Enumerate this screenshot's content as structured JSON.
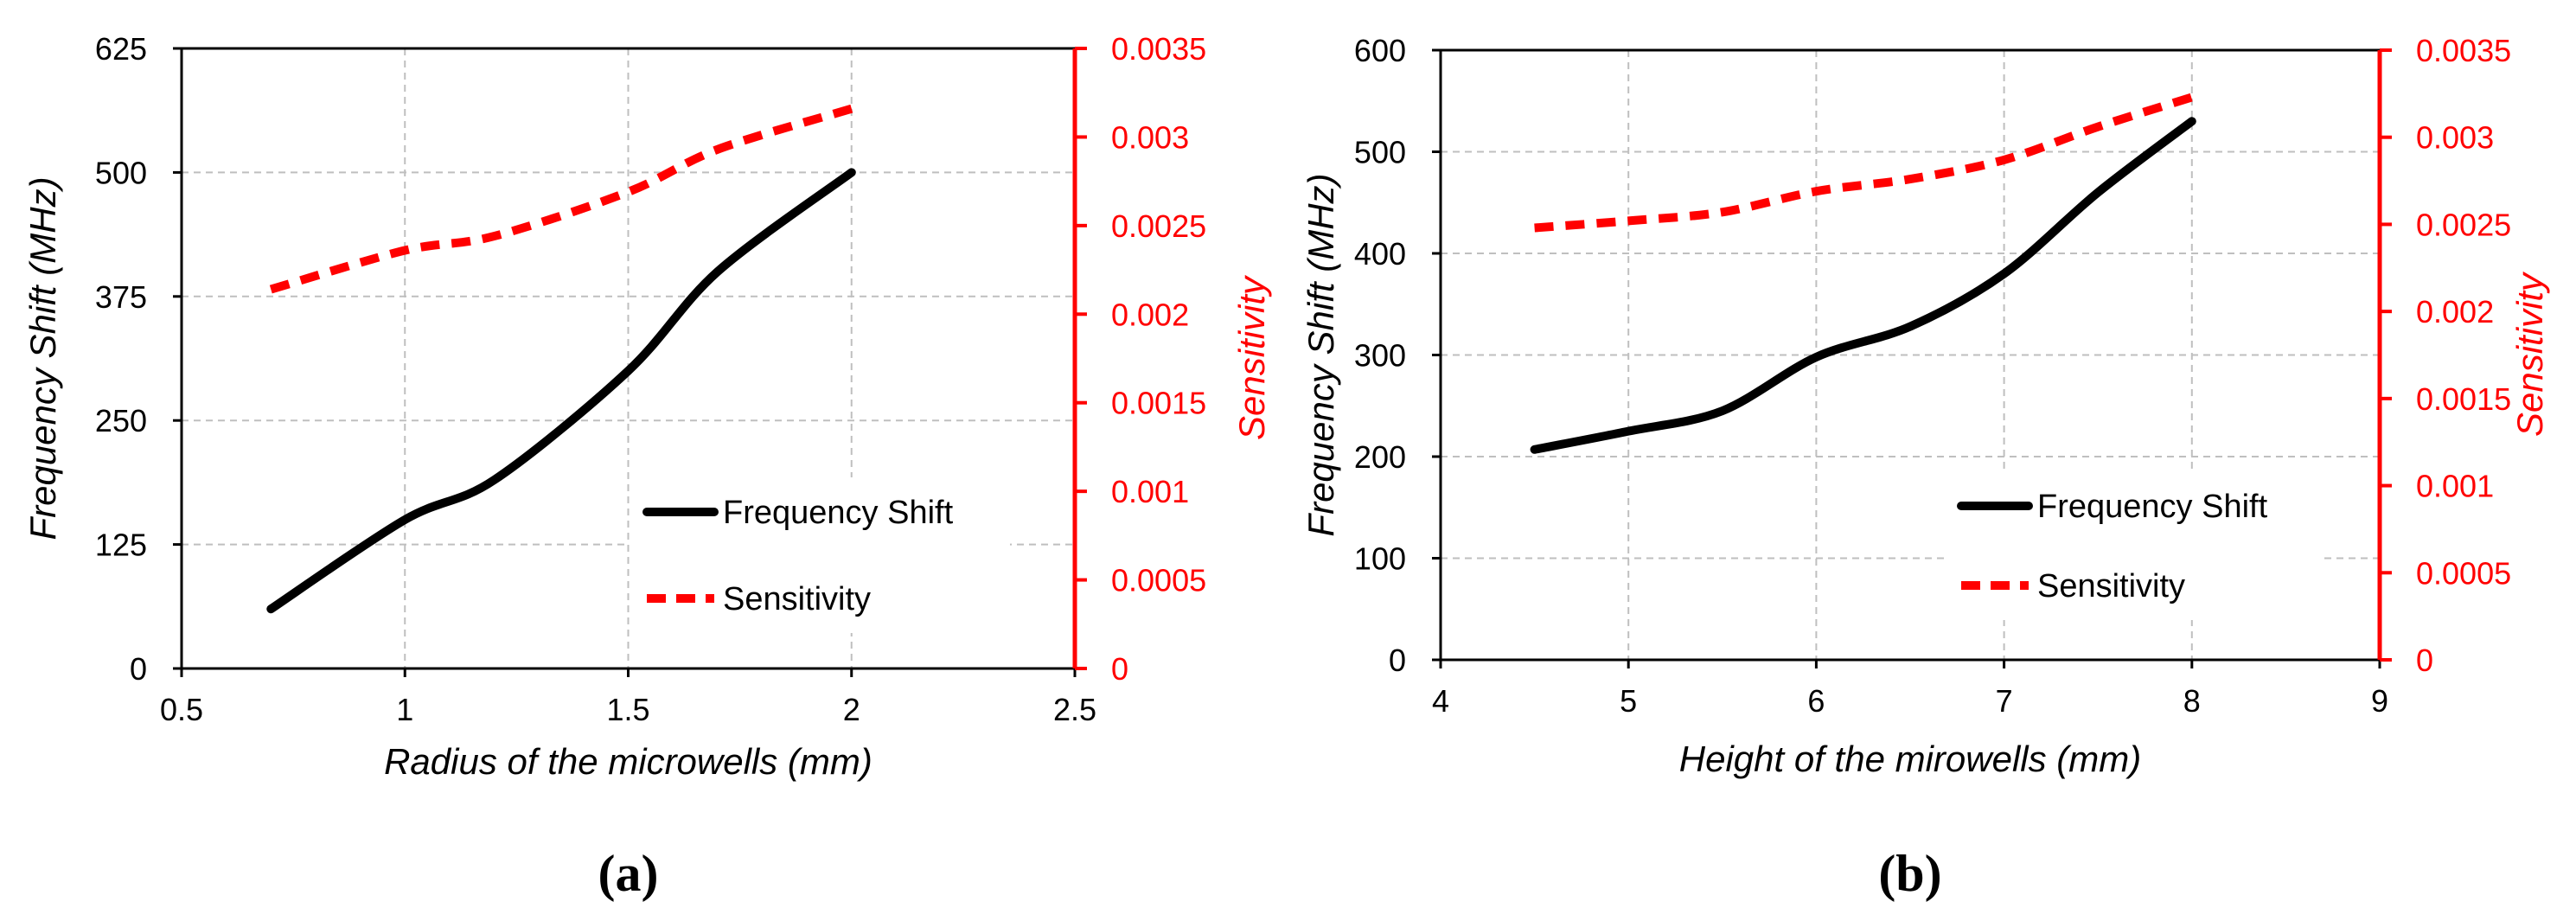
{
  "chart_data": [
    {
      "type": "line",
      "caption": "(a)",
      "xlabel": "Radius of the microwells (mm)",
      "ylabel": "Frequency Shift (MHz)",
      "y2label": "Sensitivity",
      "xlim": [
        0.5,
        2.5
      ],
      "xticks": [
        0.5,
        1,
        1.5,
        2,
        2.5
      ],
      "xtick_labels": [
        "0.5",
        "1",
        "1.5",
        "2",
        "2.5"
      ],
      "ylim": [
        0,
        625
      ],
      "yticks": [
        0,
        125,
        250,
        375,
        500,
        625
      ],
      "ytick_labels": [
        "0",
        "125",
        "250",
        "375",
        "500",
        "625"
      ],
      "y2lim": [
        0,
        0.0035
      ],
      "y2ticks": [
        0,
        0.0005,
        0.001,
        0.0015,
        0.002,
        0.0025,
        0.003,
        0.0035
      ],
      "y2tick_labels": [
        "0",
        "0.0005",
        "0.001",
        "0.0015",
        "0.002",
        "0.0025",
        "0.003",
        "0.0035"
      ],
      "grid": true,
      "legend_position": "lower-right",
      "series": [
        {
          "name": "Frequency Shift",
          "axis": "left",
          "color": "#000000",
          "style": "solid",
          "x": [
            0.7,
            1.0,
            1.2,
            1.5,
            1.7,
            2.0
          ],
          "y": [
            60,
            150,
            190,
            300,
            400,
            500
          ]
        },
        {
          "name": "Sensitivity",
          "axis": "right",
          "color": "#ff0000",
          "style": "dashed",
          "x": [
            0.7,
            1.0,
            1.2,
            1.5,
            1.7,
            2.0
          ],
          "y": [
            0.00214,
            0.00236,
            0.00244,
            0.00269,
            0.00293,
            0.00316
          ]
        }
      ]
    },
    {
      "type": "line",
      "caption": "(b)",
      "xlabel": "Height of the mirowells (mm)",
      "ylabel": "Frequency Shift (MHz)",
      "y2label": "Sensitivity",
      "xlim": [
        4,
        9
      ],
      "xticks": [
        4,
        5,
        6,
        7,
        8,
        9
      ],
      "xtick_labels": [
        "4",
        "5",
        "6",
        "7",
        "8",
        "9"
      ],
      "ylim": [
        0,
        600
      ],
      "yticks": [
        0,
        100,
        200,
        300,
        400,
        500,
        600
      ],
      "ytick_labels": [
        "0",
        "100",
        "200",
        "300",
        "400",
        "500",
        "600"
      ],
      "y2lim": [
        0,
        0.0035
      ],
      "y2ticks": [
        0,
        0.0005,
        0.001,
        0.0015,
        0.002,
        0.0025,
        0.003,
        0.0035
      ],
      "y2tick_labels": [
        "0",
        "0.0005",
        "0.001",
        "0.0015",
        "0.002",
        "0.0025",
        "0.003",
        "0.0035"
      ],
      "grid": true,
      "legend_position": "lower-right",
      "series": [
        {
          "name": "Frequency Shift",
          "axis": "left",
          "color": "#000000",
          "style": "solid",
          "x": [
            4.5,
            5.0,
            5.5,
            6.0,
            6.5,
            7.0,
            7.5,
            8.0
          ],
          "y": [
            207,
            225,
            245,
            298,
            328,
            380,
            460,
            530
          ]
        },
        {
          "name": "Sensitivity",
          "axis": "right",
          "color": "#ff0000",
          "style": "dashed",
          "x": [
            4.5,
            5.0,
            5.5,
            6.0,
            6.5,
            7.0,
            7.5,
            8.0
          ],
          "y": [
            0.00248,
            0.00252,
            0.00257,
            0.00269,
            0.00276,
            0.00287,
            0.00306,
            0.00323
          ]
        }
      ]
    }
  ]
}
